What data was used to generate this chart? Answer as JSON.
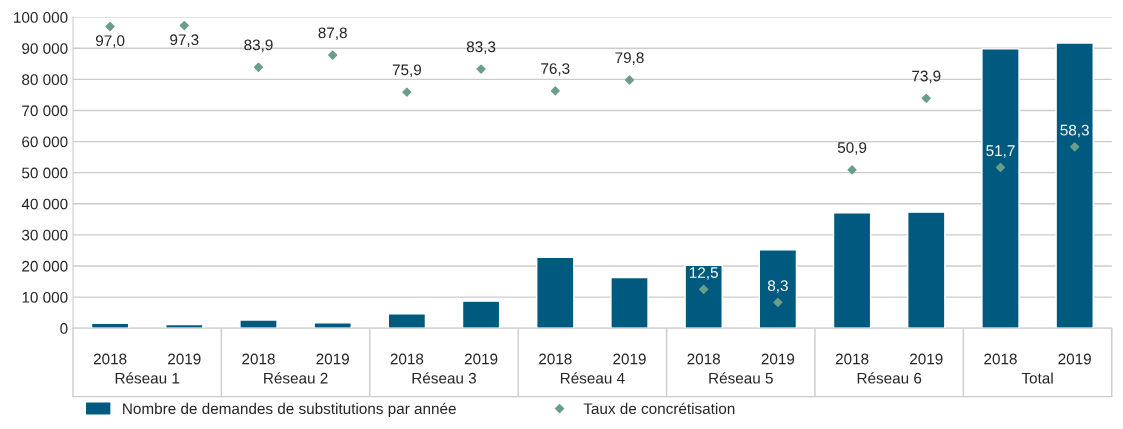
{
  "chart_data": {
    "type": "bar",
    "categories": [
      "2018",
      "2019",
      "2018",
      "2019",
      "2018",
      "2019",
      "2018",
      "2019",
      "2018",
      "2019",
      "2018",
      "2019",
      "2018",
      "2019"
    ],
    "annotations": [
      "Réseau 1",
      "Réseau 2",
      "Réseau 3",
      "Réseau 4",
      "Réseau 5",
      "Réseau 6",
      "Total"
    ],
    "series": [
      {
        "name": "Nombre de demandes de substitutions par année",
        "color": "#005a80",
        "values": [
          1600,
          1200,
          2600,
          1700,
          4600,
          8700,
          22800,
          16300,
          20200,
          25200,
          37100,
          37300,
          89800,
          91700
        ]
      },
      {
        "name": "Taux de concrétisation",
        "type": "scatter",
        "axis": "y2",
        "color": "#6a9e8a",
        "marker": "diamond",
        "values": [
          97.0,
          97.3,
          83.9,
          87.8,
          75.9,
          83.3,
          76.3,
          79.8,
          12.5,
          8.3,
          50.9,
          73.9,
          51.7,
          58.3
        ],
        "value_labels": [
          "97,0",
          "97,3",
          "83,9",
          "87,8",
          "75,9",
          "83,3",
          "76,3",
          "79,8",
          "12,5",
          "8,3",
          "50,9",
          "73,9",
          "51,7",
          "58,3"
        ]
      }
    ],
    "ylim": [
      0,
      100000
    ],
    "yticks": [
      0,
      {
        "value": 10000,
        "label": "10 000"
      },
      {
        "value": 20000,
        "label": "20 000"
      },
      {
        "value": 30000,
        "label": "30 000"
      },
      {
        "value": 40000,
        "label": "40 000"
      },
      {
        "value": 50000,
        "label": "50 000"
      },
      {
        "value": 60000,
        "label": "60 000"
      },
      {
        "value": 70000,
        "label": "70 000"
      },
      {
        "value": 80000,
        "label": "80 000"
      },
      {
        "value": 90000,
        "label": "90 000"
      },
      {
        "value": 100000,
        "label": "100 000"
      }
    ],
    "y2lim": [
      0,
      100
    ],
    "tick_labels": "xy",
    "grid": "y",
    "legend": "bottom"
  }
}
